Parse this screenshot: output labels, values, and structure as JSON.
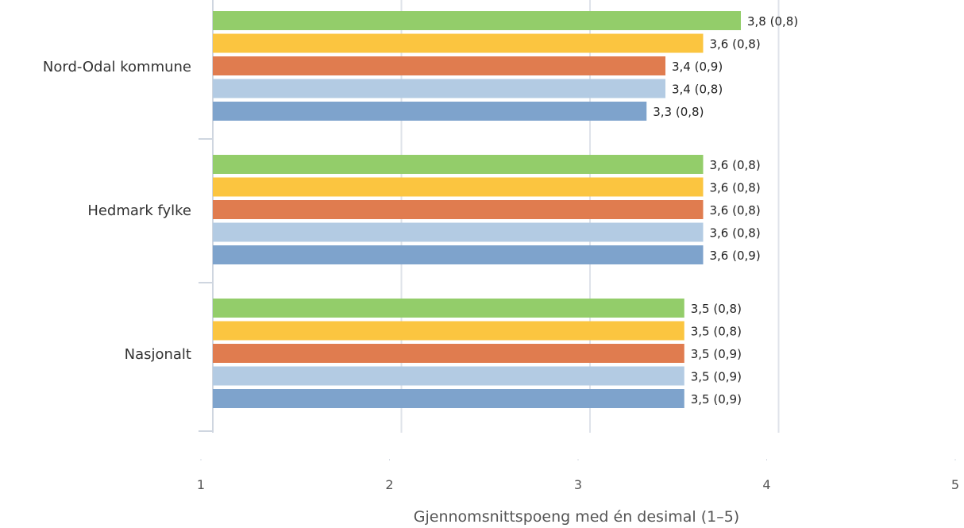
{
  "chart_data": {
    "type": "bar",
    "orientation": "horizontal",
    "categories": [
      "Nord-Odal kommune",
      "Hedmark fylke",
      "Nasjonalt"
    ],
    "series": [
      {
        "color": "#93cd6a",
        "values": [
          3.8,
          3.6,
          3.5
        ],
        "labels": [
          "3,8 (0,8)",
          "3,6 (0,8)",
          "3,5 (0,8)"
        ]
      },
      {
        "color": "#fbc540",
        "values": [
          3.6,
          3.6,
          3.5
        ],
        "labels": [
          "3,6 (0,8)",
          "3,6 (0,8)",
          "3,5 (0,8)"
        ]
      },
      {
        "color": "#e07c4f",
        "values": [
          3.4,
          3.6,
          3.5
        ],
        "labels": [
          "3,4 (0,9)",
          "3,6 (0,8)",
          "3,5 (0,9)"
        ]
      },
      {
        "color": "#b3cbe3",
        "values": [
          3.4,
          3.6,
          3.5
        ],
        "labels": [
          "3,4 (0,8)",
          "3,6 (0,8)",
          "3,5 (0,9)"
        ]
      },
      {
        "color": "#7ea3cc",
        "values": [
          3.3,
          3.6,
          3.5
        ],
        "labels": [
          "3,3 (0,8)",
          "3,6 (0,9)",
          "3,5 (0,9)"
        ]
      }
    ],
    "xlabel": "Gjennomsnittspoeng med én desimal (1–5)",
    "xlim": [
      1,
      5
    ],
    "xticks": [
      "1",
      "2",
      "3",
      "4",
      "5"
    ],
    "grid": true
  }
}
